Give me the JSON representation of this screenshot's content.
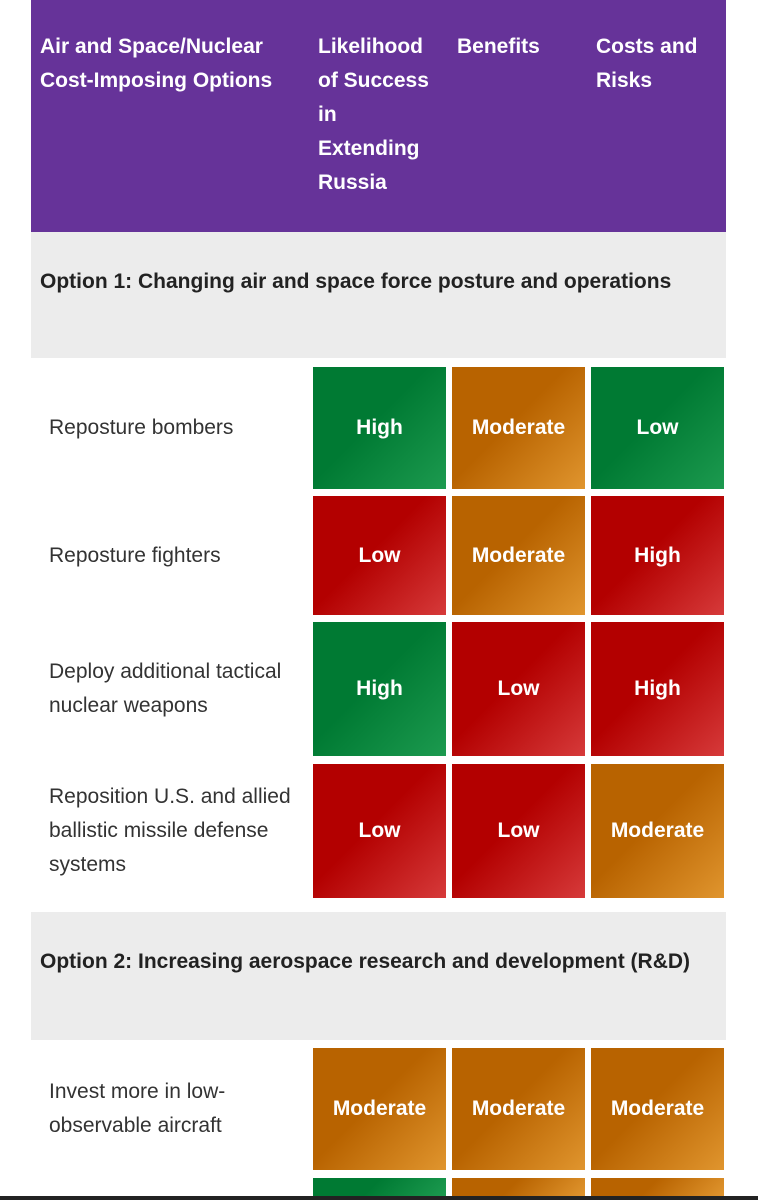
{
  "header": {
    "col1": "Air and Space/Nuclear Cost-Imposing Options",
    "col2": "Likelihood of Success in Extending Russia",
    "col3": "Benefits",
    "col4": "Costs and Risks"
  },
  "sections": [
    {
      "title": "Option 1: Changing air and space force posture and operations",
      "rows": [
        {
          "label": "Reposture bombers",
          "likelihood": "High",
          "benefits": "Moderate",
          "costs": "Low"
        },
        {
          "label": "Reposture fighters",
          "likelihood": "Low",
          "benefits": "Moderate",
          "costs": "High"
        },
        {
          "label": "Deploy additional tactical nuclear weapons",
          "likelihood": "High",
          "benefits": "Low",
          "costs": "High"
        },
        {
          "label": "Reposition U.S. and allied ballistic missile defense systems",
          "likelihood": "Low",
          "benefits": "Low",
          "costs": "Moderate"
        }
      ]
    },
    {
      "title": "Option 2: Increasing aerospace research and development (R&D)",
      "rows": [
        {
          "label": "Invest more in low-observable aircraft",
          "likelihood": "Moderate",
          "benefits": "Moderate",
          "costs": "Moderate"
        }
      ]
    }
  ],
  "colors": {
    "header_bg": "#663399",
    "high": "#007a33",
    "low": "#b30000",
    "moderate": "#b86300",
    "section_bg": "#ececec"
  }
}
